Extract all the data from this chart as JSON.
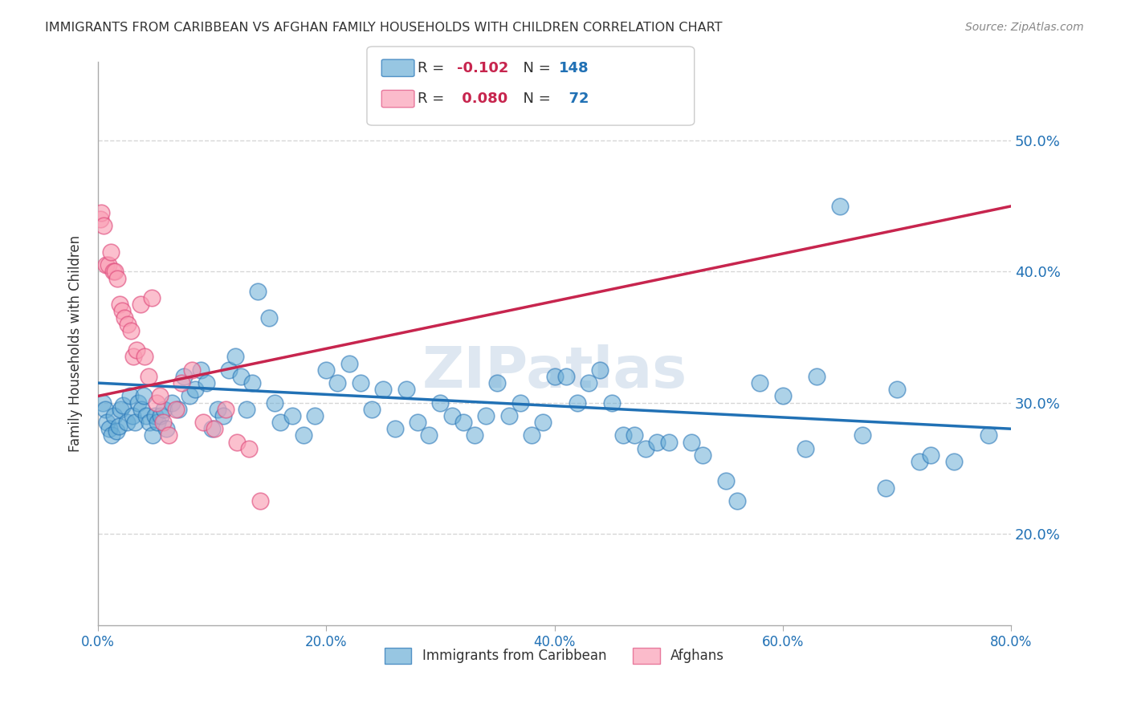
{
  "title": "IMMIGRANTS FROM CARIBBEAN VS AFGHAN FAMILY HOUSEHOLDS WITH CHILDREN CORRELATION CHART",
  "source": "Source: ZipAtlas.com",
  "xlabel_bottom": "",
  "ylabel_left": "Family Households with Children",
  "x_tick_labels": [
    "0.0%",
    "20.0%",
    "40.0%",
    "60.0%",
    "80.0%"
  ],
  "x_tick_vals": [
    0,
    20,
    40,
    60,
    80
  ],
  "y_tick_labels": [
    "20.0%",
    "30.0%",
    "40.0%",
    "50.0%"
  ],
  "y_tick_vals": [
    20,
    30,
    40,
    50
  ],
  "xlim": [
    0,
    80
  ],
  "ylim": [
    13,
    56
  ],
  "legend_labels": [
    "Immigrants from Caribbean",
    "Afghans"
  ],
  "caribbean_R": -0.102,
  "caribbean_N": 148,
  "afghan_R": 0.08,
  "afghan_N": 72,
  "caribbean_color": "#6baed6",
  "afghan_color": "#fa9fb5",
  "caribbean_line_color": "#2171b5",
  "afghan_line_color": "#c7254e",
  "watermark": "ZIPatlas",
  "caribbean_x": [
    0.4,
    0.6,
    0.8,
    1.0,
    1.2,
    1.4,
    1.6,
    1.8,
    2.0,
    2.2,
    2.5,
    2.8,
    3.0,
    3.2,
    3.5,
    3.8,
    4.0,
    4.2,
    4.5,
    4.8,
    5.0,
    5.2,
    5.5,
    5.8,
    6.0,
    6.5,
    7.0,
    7.5,
    8.0,
    8.5,
    9.0,
    9.5,
    10.0,
    10.5,
    11.0,
    11.5,
    12.0,
    12.5,
    13.0,
    13.5,
    14.0,
    15.0,
    15.5,
    16.0,
    17.0,
    18.0,
    19.0,
    20.0,
    21.0,
    22.0,
    23.0,
    24.0,
    25.0,
    26.0,
    27.0,
    28.0,
    29.0,
    30.0,
    31.0,
    32.0,
    33.0,
    34.0,
    35.0,
    36.0,
    37.0,
    38.0,
    39.0,
    40.0,
    41.0,
    42.0,
    43.0,
    44.0,
    45.0,
    46.0,
    47.0,
    48.0,
    49.0,
    50.0,
    52.0,
    53.0,
    55.0,
    56.0,
    58.0,
    60.0,
    62.0,
    63.0,
    65.0,
    67.0,
    69.0,
    70.0,
    72.0,
    73.0,
    75.0,
    78.0
  ],
  "caribbean_y": [
    30.0,
    29.5,
    28.5,
    28.0,
    27.5,
    29.0,
    27.8,
    28.2,
    29.5,
    29.8,
    28.5,
    30.5,
    29.0,
    28.5,
    30.0,
    29.5,
    30.5,
    29.0,
    28.5,
    27.5,
    29.0,
    28.5,
    29.0,
    29.5,
    28.0,
    30.0,
    29.5,
    32.0,
    30.5,
    31.0,
    32.5,
    31.5,
    28.0,
    29.5,
    29.0,
    32.5,
    33.5,
    32.0,
    29.5,
    31.5,
    38.5,
    36.5,
    30.0,
    28.5,
    29.0,
    27.5,
    29.0,
    32.5,
    31.5,
    33.0,
    31.5,
    29.5,
    31.0,
    28.0,
    31.0,
    28.5,
    27.5,
    30.0,
    29.0,
    28.5,
    27.5,
    29.0,
    31.5,
    29.0,
    30.0,
    27.5,
    28.5,
    32.0,
    32.0,
    30.0,
    31.5,
    32.5,
    30.0,
    27.5,
    27.5,
    26.5,
    27.0,
    27.0,
    27.0,
    26.0,
    24.0,
    22.5,
    31.5,
    30.5,
    26.5,
    32.0,
    45.0,
    27.5,
    23.5,
    31.0,
    25.5,
    26.0,
    25.5,
    27.5
  ],
  "afghan_x": [
    0.2,
    0.3,
    0.5,
    0.7,
    0.9,
    1.1,
    1.3,
    1.5,
    1.7,
    1.9,
    2.1,
    2.3,
    2.6,
    2.9,
    3.1,
    3.4,
    3.7,
    4.1,
    4.4,
    4.7,
    5.1,
    5.4,
    5.7,
    6.2,
    6.8,
    7.3,
    8.2,
    9.2,
    10.2,
    11.2,
    12.2,
    13.2,
    14.2
  ],
  "afghan_y": [
    44.0,
    44.5,
    43.5,
    40.5,
    40.5,
    41.5,
    40.0,
    40.0,
    39.5,
    37.5,
    37.0,
    36.5,
    36.0,
    35.5,
    33.5,
    34.0,
    37.5,
    33.5,
    32.0,
    38.0,
    30.0,
    30.5,
    28.5,
    27.5,
    29.5,
    31.5,
    32.5,
    28.5,
    28.0,
    29.5,
    27.0,
    26.5,
    22.5
  ],
  "caribbean_trendline_x": [
    0,
    80
  ],
  "caribbean_trendline_y": [
    31.5,
    28.0
  ],
  "afghan_trendline_x": [
    0,
    80
  ],
  "afghan_trendline_y": [
    30.5,
    45.0
  ],
  "grid_color": "#cccccc",
  "background_color": "#ffffff"
}
